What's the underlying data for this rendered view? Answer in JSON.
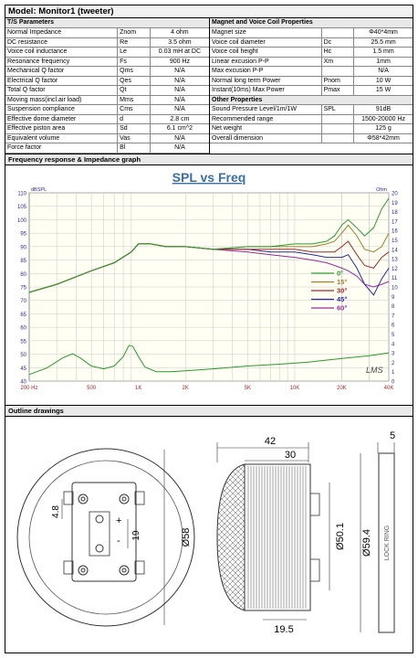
{
  "title": "Model: Monitor1 (tweeter)",
  "ts": {
    "header": "T/S Parameters",
    "rows": [
      {
        "name": "Normal Impedance",
        "symbol": "Znom",
        "value": "4 ohm"
      },
      {
        "name": "DC resistance",
        "symbol": "Re",
        "value": "3.5 ohm"
      },
      {
        "name": "Voice coil inductance",
        "symbol": "Le",
        "value": "0.03 mH at DC"
      },
      {
        "name": "Resonance frequency",
        "symbol": "Fs",
        "value": "900 Hz"
      },
      {
        "name": "Mechanical Q factor",
        "symbol": "Qms",
        "value": "N/A"
      },
      {
        "name": "Electrical Q factor",
        "symbol": "Qes",
        "value": "N/A"
      },
      {
        "name": "Total Q factor",
        "symbol": "Qt",
        "value": "N/A"
      },
      {
        "name": "Moving mass(incl.air load)",
        "symbol": "Mms",
        "value": "N/A"
      },
      {
        "name": "Suspension compliance",
        "symbol": "Cms",
        "value": "N/A"
      },
      {
        "name": "Effective dome diameter",
        "symbol": "d",
        "value": "2.8 cm"
      },
      {
        "name": "Effective piston area",
        "symbol": "Sd",
        "value": "6.1 cm^2"
      },
      {
        "name": "Equivalent volume",
        "symbol": "Vas",
        "value": "N/A"
      },
      {
        "name": "Force factor",
        "symbol": "Bl",
        "value": "N/A"
      }
    ]
  },
  "magnet": {
    "header": "Magnet and Voice Coil Properties",
    "rows": [
      {
        "name": "Magnet size",
        "symbol": "",
        "value": "Φ40*4mm"
      },
      {
        "name": "Voice coil diameter",
        "symbol": "Dc",
        "value": "25.5 mm"
      },
      {
        "name": "Voice coil height",
        "symbol": "Hc",
        "value": "1.5 mm"
      },
      {
        "name": "Linear excusion P-P",
        "symbol": "Xm",
        "value": "1mm"
      },
      {
        "name": "Max excusion P-P",
        "symbol": "",
        "value": "N/A"
      },
      {
        "name": "Normal long term Power",
        "symbol": "Pnom",
        "value": "10 W"
      },
      {
        "name": "Instant(10ms) Max Power",
        "symbol": "Pmax",
        "value": "15 W"
      }
    ]
  },
  "other": {
    "header": "Other Properties",
    "rows": [
      {
        "name": "Sound Pressure Level/1m/1W",
        "symbol": "SPL",
        "value": "91dB"
      },
      {
        "name": "Recommended range",
        "symbol": "",
        "value": "1500-20000 Hz"
      },
      {
        "name": "Net weight",
        "symbol": "",
        "value": "125 g"
      },
      {
        "name": "Overall dimension",
        "symbol": "",
        "value": "Φ58*42mm"
      }
    ]
  },
  "chart_section_label": "Frequency response & Impedance graph",
  "drawings_section_label": "Outline drawings",
  "chart_data": {
    "type": "line",
    "title": "SPL vs Freq",
    "ylabel": "dBSPL",
    "y2label": "Ohm",
    "xscale": "log",
    "xlim": [
      200,
      40000
    ],
    "ylim": [
      40,
      110
    ],
    "y2lim": [
      0,
      20
    ],
    "grid": true,
    "x_ticks": [
      {
        "v": 200,
        "label": "200 Hz"
      },
      {
        "v": 500,
        "label": "500"
      },
      {
        "v": 1000,
        "label": "1K"
      },
      {
        "v": 2000,
        "label": "2K"
      },
      {
        "v": 5000,
        "label": "5K"
      },
      {
        "v": 10000,
        "label": "10K"
      },
      {
        "v": 20000,
        "label": "20K"
      },
      {
        "v": 40000,
        "label": "40K"
      }
    ],
    "y_ticks": [
      40,
      45,
      50,
      55,
      60,
      65,
      70,
      75,
      80,
      85,
      90,
      95,
      100,
      105,
      110
    ],
    "y2_ticks": [
      0,
      1,
      2,
      3,
      4,
      5,
      6,
      7,
      8,
      9,
      10,
      11,
      12,
      13,
      14,
      15,
      16,
      17,
      18,
      19,
      20
    ],
    "watermark": "LMS",
    "legend_position": "right",
    "series": [
      {
        "name": "0°",
        "color": "#2a9a2a",
        "x": [
          200,
          300,
          500,
          700,
          900,
          1000,
          1200,
          1500,
          2000,
          3000,
          5000,
          7000,
          10000,
          13000,
          16000,
          18000,
          20000,
          22000,
          25000,
          28000,
          32000,
          36000,
          40000
        ],
        "y": [
          73,
          76,
          81,
          84,
          88,
          91,
          91,
          90,
          90,
          89,
          90,
          90,
          91,
          91,
          92,
          94,
          98,
          100,
          97,
          94,
          97,
          104,
          108
        ]
      },
      {
        "name": "15°",
        "color": "#a0802a",
        "x": [
          200,
          300,
          500,
          700,
          900,
          1000,
          1200,
          1500,
          2000,
          3000,
          5000,
          7000,
          10000,
          13000,
          16000,
          18000,
          20000,
          22000,
          25000,
          28000,
          32000,
          36000,
          40000
        ],
        "y": [
          73,
          76,
          81,
          84,
          88,
          91,
          91,
          90,
          90,
          89,
          90,
          90,
          90,
          90,
          91,
          92,
          95,
          98,
          94,
          89,
          88,
          90,
          95
        ]
      },
      {
        "name": "30°",
        "color": "#a02a2a",
        "x": [
          200,
          300,
          500,
          700,
          900,
          1000,
          1200,
          1500,
          2000,
          3000,
          5000,
          7000,
          10000,
          13000,
          16000,
          18000,
          20000,
          22000,
          25000,
          28000,
          32000,
          36000,
          40000
        ],
        "y": [
          73,
          76,
          81,
          84,
          88,
          91,
          91,
          90,
          90,
          89,
          89,
          89,
          89,
          88,
          88,
          88,
          90,
          92,
          87,
          83,
          82,
          86,
          88
        ]
      },
      {
        "name": "45°",
        "color": "#2a2a9a",
        "x": [
          200,
          300,
          500,
          700,
          900,
          1000,
          1200,
          1500,
          2000,
          3000,
          5000,
          7000,
          10000,
          13000,
          16000,
          18000,
          20000,
          22000,
          25000,
          28000,
          32000,
          36000,
          40000
        ],
        "y": [
          73,
          76,
          81,
          84,
          88,
          91,
          91,
          90,
          90,
          89,
          89,
          88,
          88,
          87,
          86,
          86,
          86,
          87,
          82,
          76,
          72,
          78,
          82
        ]
      },
      {
        "name": "60°",
        "color": "#9a2a9a",
        "x": [
          200,
          300,
          500,
          700,
          900,
          1000,
          1200,
          1500,
          2000,
          3000,
          5000,
          7000,
          10000,
          13000,
          16000,
          18000,
          20000,
          22000,
          25000,
          28000,
          32000,
          36000,
          40000
        ],
        "y": [
          73,
          76,
          81,
          84,
          88,
          91,
          91,
          90,
          90,
          89,
          88,
          87,
          86,
          85,
          84,
          83,
          82,
          81,
          79,
          76,
          75,
          76,
          77
        ]
      }
    ],
    "impedance_series": {
      "name": "Impedance",
      "color": "#2a9a2a",
      "axis": "y2",
      "x": [
        200,
        260,
        330,
        380,
        430,
        500,
        600,
        700,
        800,
        870,
        920,
        1000,
        1100,
        1300,
        1600,
        2000,
        3000,
        5000,
        8000,
        12000,
        20000,
        30000,
        40000
      ],
      "y": [
        0.7,
        1.4,
        2.5,
        2.9,
        2.4,
        1.6,
        1.3,
        1.6,
        2.6,
        3.8,
        3.7,
        2.6,
        1.5,
        1.0,
        1.0,
        1.1,
        1.3,
        1.6,
        1.8,
        2.0,
        2.4,
        2.7,
        3.0
      ]
    }
  },
  "dims": {
    "front_4_8": "4.8",
    "front_19": "19",
    "front_phi58": "Ø58",
    "top_42": "42",
    "top_30": "30",
    "right_5": "5",
    "side_phi50_1": "Ø50.1",
    "side_phi59_4": "Ø59.4",
    "bottom_19_5": "19.5",
    "lock_ring": "LOCK RING",
    "plus": "+",
    "minus": "-"
  }
}
